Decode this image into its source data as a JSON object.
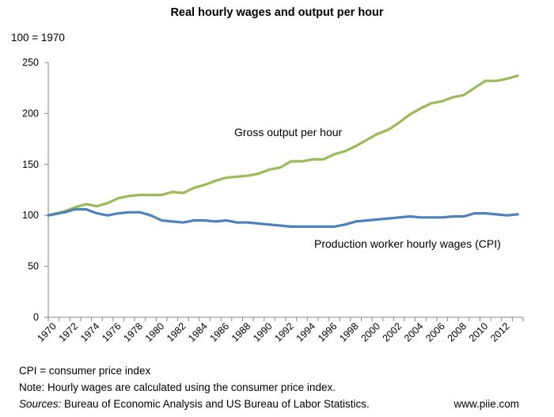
{
  "chart_data": {
    "type": "line",
    "title": "Real hourly wages and output per hour",
    "index_note": "100 = 1970",
    "xlabel": "",
    "ylabel": "",
    "ylim": [
      0,
      250
    ],
    "yticks": [
      0,
      50,
      100,
      150,
      200,
      250
    ],
    "x": [
      1970,
      1971,
      1972,
      1973,
      1974,
      1975,
      1976,
      1977,
      1978,
      1979,
      1980,
      1981,
      1982,
      1983,
      1984,
      1985,
      1986,
      1987,
      1988,
      1989,
      1990,
      1991,
      1992,
      1993,
      1994,
      1995,
      1996,
      1997,
      1998,
      1999,
      2000,
      2001,
      2002,
      2003,
      2004,
      2005,
      2006,
      2007,
      2008,
      2009,
      2010,
      2011,
      2012,
      2013
    ],
    "x_tick_labels": [
      "1970",
      "1972",
      "1974",
      "1976",
      "1978",
      "1980",
      "1982",
      "1984",
      "1986",
      "1988",
      "1990",
      "1992",
      "1994",
      "1996",
      "1998",
      "2000",
      "2002",
      "2004",
      "2006",
      "2008",
      "2010",
      "2012"
    ],
    "series": [
      {
        "name": "Gross output per hour",
        "color": "#9BBB59",
        "values": [
          100,
          104,
          108,
          111,
          109,
          112,
          117,
          119,
          120,
          120,
          120,
          123,
          122,
          127,
          130,
          134,
          137,
          138,
          139,
          141,
          145,
          147,
          153,
          153,
          155,
          155,
          160,
          163,
          168,
          174,
          180,
          184,
          191,
          199,
          205,
          210,
          212,
          216,
          218,
          225,
          232,
          232,
          234,
          237
        ]
      },
      {
        "name": "Production worker hourly wages (CPI)",
        "color": "#4F81BD",
        "values": [
          100,
          103,
          106,
          106,
          102,
          100,
          102,
          103,
          103,
          100,
          95,
          94,
          93,
          95,
          95,
          94,
          95,
          93,
          93,
          92,
          91,
          90,
          89,
          89,
          89,
          89,
          89,
          91,
          94,
          95,
          96,
          97,
          98,
          99,
          98,
          98,
          98,
          99,
          99,
          102,
          102,
          101,
          100,
          101
        ]
      }
    ],
    "annotations": {
      "gross_output": "Gross output per hour",
      "wages": "Production worker hourly wages (CPI)"
    },
    "grid": false
  },
  "footer": {
    "cpi_note": "CPI = consumer price index",
    "note": "Note: Hourly wages are calculated using the consumer price index.",
    "sources_label": "Sources:",
    "sources_text": " Bureau of Economic Analysis and US Bureau of Labor Statistics.",
    "website": "www.piie.com"
  }
}
